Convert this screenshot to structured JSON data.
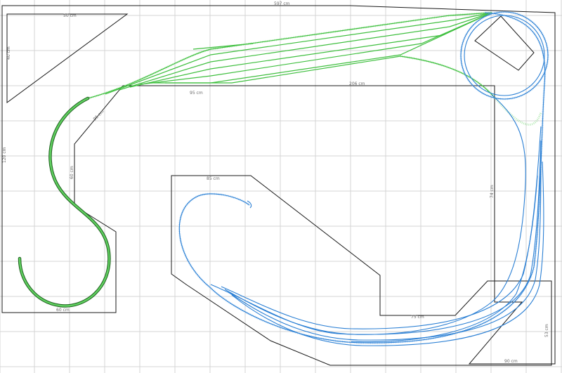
{
  "layout": {
    "dimension_labels": {
      "top_width": "597 cm",
      "inner_top": "206 cm",
      "upper_left": "50 cm",
      "left_side": "120 cm",
      "left_mid": "60 cm",
      "center_top": "85 cm",
      "center_right": "74 cm",
      "bottom_mid": "75 cm",
      "bottom_right": "90 cm",
      "right_side": "53 cm",
      "left_corner": "95 cm",
      "bottom_left": "60 cm",
      "left_top": "40 cm"
    },
    "colors": {
      "grid": "#d4d4d4",
      "outline": "#1a1a1a",
      "green_track": "#3fbf3f",
      "blue_track": "#2a7fd4",
      "dark_track": "#1f5f1f"
    }
  }
}
